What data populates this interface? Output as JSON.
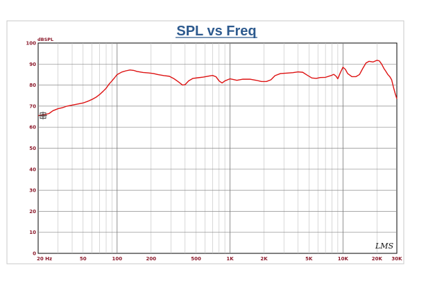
{
  "chart_data": {
    "type": "line",
    "title": "SPL vs Freq",
    "ylabel": "dBSPL",
    "xscale": "log",
    "xlim": [
      20,
      30000
    ],
    "ylim": [
      0,
      100
    ],
    "grid": true,
    "y_ticks": [
      0,
      10,
      20,
      30,
      40,
      50,
      60,
      70,
      80,
      90,
      100
    ],
    "x_ticks": [
      {
        "value": 20,
        "label": "20  Hz"
      },
      {
        "value": 50,
        "label": "50"
      },
      {
        "value": 100,
        "label": "100"
      },
      {
        "value": 200,
        "label": "200"
      },
      {
        "value": 500,
        "label": "500"
      },
      {
        "value": 1000,
        "label": "1K"
      },
      {
        "value": 2000,
        "label": "2K"
      },
      {
        "value": 5000,
        "label": "5K"
      },
      {
        "value": 10000,
        "label": "10K"
      },
      {
        "value": 20000,
        "label": "20K"
      },
      {
        "value": 30000,
        "label": "30K"
      }
    ],
    "series": [
      {
        "color": "#dd1111",
        "points": [
          [
            20,
            65.5
          ],
          [
            22,
            65.7
          ],
          [
            25,
            66.5
          ],
          [
            27,
            67.8
          ],
          [
            30,
            68.8
          ],
          [
            33,
            69.3
          ],
          [
            36,
            70.0
          ],
          [
            40,
            70.5
          ],
          [
            45,
            71.0
          ],
          [
            50,
            71.5
          ],
          [
            55,
            72.3
          ],
          [
            60,
            73.2
          ],
          [
            65,
            74.2
          ],
          [
            70,
            75.5
          ],
          [
            75,
            77.0
          ],
          [
            80,
            78.5
          ],
          [
            85,
            80.5
          ],
          [
            90,
            82.0
          ],
          [
            95,
            83.5
          ],
          [
            100,
            85.0
          ],
          [
            110,
            86.2
          ],
          [
            120,
            86.8
          ],
          [
            130,
            87.2
          ],
          [
            140,
            87.0
          ],
          [
            150,
            86.5
          ],
          [
            170,
            86.0
          ],
          [
            190,
            85.8
          ],
          [
            210,
            85.5
          ],
          [
            230,
            85.0
          ],
          [
            260,
            84.5
          ],
          [
            290,
            84.2
          ],
          [
            320,
            83.0
          ],
          [
            350,
            81.5
          ],
          [
            380,
            80.0
          ],
          [
            400,
            80.2
          ],
          [
            430,
            82.0
          ],
          [
            470,
            83.2
          ],
          [
            520,
            83.5
          ],
          [
            580,
            83.8
          ],
          [
            650,
            84.3
          ],
          [
            700,
            84.6
          ],
          [
            750,
            84.0
          ],
          [
            800,
            82.0
          ],
          [
            850,
            81.0
          ],
          [
            900,
            82.0
          ],
          [
            1000,
            83.0
          ],
          [
            1080,
            82.6
          ],
          [
            1150,
            82.3
          ],
          [
            1300,
            82.8
          ],
          [
            1500,
            82.8
          ],
          [
            1700,
            82.3
          ],
          [
            1900,
            81.7
          ],
          [
            2100,
            81.7
          ],
          [
            2300,
            82.5
          ],
          [
            2500,
            84.5
          ],
          [
            2800,
            85.5
          ],
          [
            3200,
            85.7
          ],
          [
            3600,
            85.9
          ],
          [
            4000,
            86.3
          ],
          [
            4400,
            86.1
          ],
          [
            4800,
            84.8
          ],
          [
            5300,
            83.4
          ],
          [
            5800,
            83.2
          ],
          [
            6300,
            83.6
          ],
          [
            7000,
            83.7
          ],
          [
            7800,
            84.5
          ],
          [
            8300,
            85.1
          ],
          [
            8700,
            84.2
          ],
          [
            9000,
            83.0
          ],
          [
            9500,
            86.0
          ],
          [
            10000,
            88.5
          ],
          [
            10500,
            87.5
          ],
          [
            11000,
            85.5
          ],
          [
            12000,
            84.0
          ],
          [
            13000,
            84.0
          ],
          [
            14000,
            85.0
          ],
          [
            15000,
            88.0
          ],
          [
            16000,
            90.5
          ],
          [
            17000,
            91.3
          ],
          [
            18500,
            91.0
          ],
          [
            20000,
            91.8
          ],
          [
            21000,
            91.5
          ],
          [
            22000,
            90.0
          ],
          [
            23000,
            88.0
          ],
          [
            24000,
            86.5
          ],
          [
            25000,
            85.0
          ],
          [
            26000,
            84.0
          ],
          [
            27000,
            82.5
          ],
          [
            28000,
            79.0
          ],
          [
            29000,
            76.0
          ],
          [
            30000,
            73.5
          ]
        ]
      }
    ],
    "marker": {
      "x": 20,
      "y": 65.5
    }
  },
  "watermark": "LMS"
}
